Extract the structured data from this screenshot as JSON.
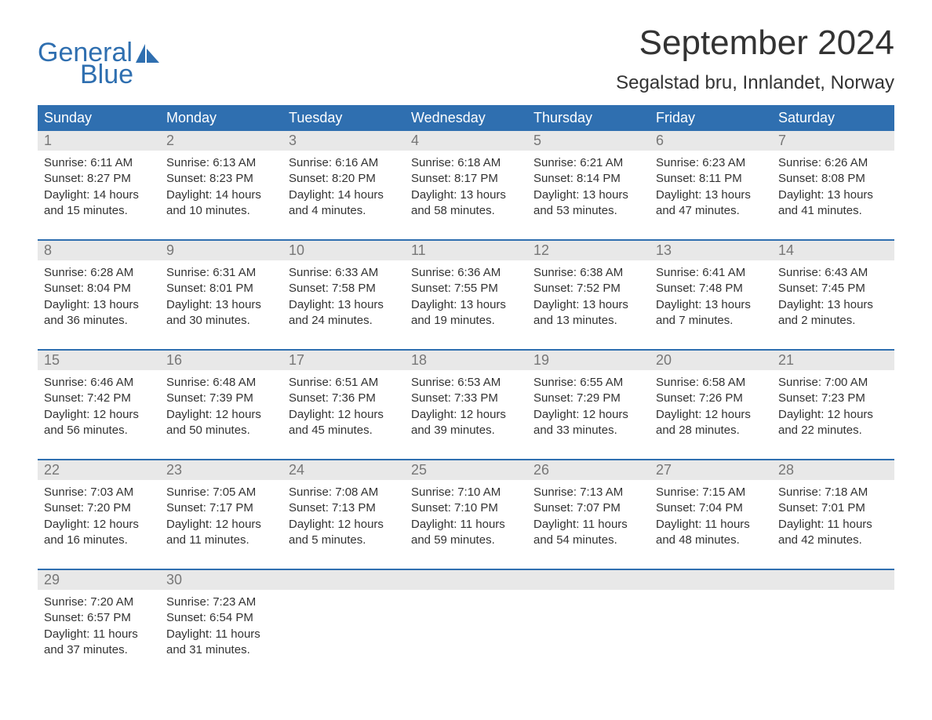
{
  "logo": {
    "word1": "General",
    "word2": "Blue",
    "text_color": "#2f6fb0",
    "sail_color": "#2f6fb0"
  },
  "title": "September 2024",
  "location": "Segalstad bru, Innlandet, Norway",
  "colors": {
    "header_bg": "#2f6fb0",
    "header_text": "#ffffff",
    "daynum_bg": "#e8e8e8",
    "daynum_text": "#777777",
    "body_text": "#333333",
    "page_bg": "#ffffff",
    "week_divider": "#2f6fb0"
  },
  "day_headers": [
    "Sunday",
    "Monday",
    "Tuesday",
    "Wednesday",
    "Thursday",
    "Friday",
    "Saturday"
  ],
  "weeks": [
    [
      {
        "n": "1",
        "sr": "Sunrise: 6:11 AM",
        "ss": "Sunset: 8:27 PM",
        "d1": "Daylight: 14 hours",
        "d2": "and 15 minutes."
      },
      {
        "n": "2",
        "sr": "Sunrise: 6:13 AM",
        "ss": "Sunset: 8:23 PM",
        "d1": "Daylight: 14 hours",
        "d2": "and 10 minutes."
      },
      {
        "n": "3",
        "sr": "Sunrise: 6:16 AM",
        "ss": "Sunset: 8:20 PM",
        "d1": "Daylight: 14 hours",
        "d2": "and 4 minutes."
      },
      {
        "n": "4",
        "sr": "Sunrise: 6:18 AM",
        "ss": "Sunset: 8:17 PM",
        "d1": "Daylight: 13 hours",
        "d2": "and 58 minutes."
      },
      {
        "n": "5",
        "sr": "Sunrise: 6:21 AM",
        "ss": "Sunset: 8:14 PM",
        "d1": "Daylight: 13 hours",
        "d2": "and 53 minutes."
      },
      {
        "n": "6",
        "sr": "Sunrise: 6:23 AM",
        "ss": "Sunset: 8:11 PM",
        "d1": "Daylight: 13 hours",
        "d2": "and 47 minutes."
      },
      {
        "n": "7",
        "sr": "Sunrise: 6:26 AM",
        "ss": "Sunset: 8:08 PM",
        "d1": "Daylight: 13 hours",
        "d2": "and 41 minutes."
      }
    ],
    [
      {
        "n": "8",
        "sr": "Sunrise: 6:28 AM",
        "ss": "Sunset: 8:04 PM",
        "d1": "Daylight: 13 hours",
        "d2": "and 36 minutes."
      },
      {
        "n": "9",
        "sr": "Sunrise: 6:31 AM",
        "ss": "Sunset: 8:01 PM",
        "d1": "Daylight: 13 hours",
        "d2": "and 30 minutes."
      },
      {
        "n": "10",
        "sr": "Sunrise: 6:33 AM",
        "ss": "Sunset: 7:58 PM",
        "d1": "Daylight: 13 hours",
        "d2": "and 24 minutes."
      },
      {
        "n": "11",
        "sr": "Sunrise: 6:36 AM",
        "ss": "Sunset: 7:55 PM",
        "d1": "Daylight: 13 hours",
        "d2": "and 19 minutes."
      },
      {
        "n": "12",
        "sr": "Sunrise: 6:38 AM",
        "ss": "Sunset: 7:52 PM",
        "d1": "Daylight: 13 hours",
        "d2": "and 13 minutes."
      },
      {
        "n": "13",
        "sr": "Sunrise: 6:41 AM",
        "ss": "Sunset: 7:48 PM",
        "d1": "Daylight: 13 hours",
        "d2": "and 7 minutes."
      },
      {
        "n": "14",
        "sr": "Sunrise: 6:43 AM",
        "ss": "Sunset: 7:45 PM",
        "d1": "Daylight: 13 hours",
        "d2": "and 2 minutes."
      }
    ],
    [
      {
        "n": "15",
        "sr": "Sunrise: 6:46 AM",
        "ss": "Sunset: 7:42 PM",
        "d1": "Daylight: 12 hours",
        "d2": "and 56 minutes."
      },
      {
        "n": "16",
        "sr": "Sunrise: 6:48 AM",
        "ss": "Sunset: 7:39 PM",
        "d1": "Daylight: 12 hours",
        "d2": "and 50 minutes."
      },
      {
        "n": "17",
        "sr": "Sunrise: 6:51 AM",
        "ss": "Sunset: 7:36 PM",
        "d1": "Daylight: 12 hours",
        "d2": "and 45 minutes."
      },
      {
        "n": "18",
        "sr": "Sunrise: 6:53 AM",
        "ss": "Sunset: 7:33 PM",
        "d1": "Daylight: 12 hours",
        "d2": "and 39 minutes."
      },
      {
        "n": "19",
        "sr": "Sunrise: 6:55 AM",
        "ss": "Sunset: 7:29 PM",
        "d1": "Daylight: 12 hours",
        "d2": "and 33 minutes."
      },
      {
        "n": "20",
        "sr": "Sunrise: 6:58 AM",
        "ss": "Sunset: 7:26 PM",
        "d1": "Daylight: 12 hours",
        "d2": "and 28 minutes."
      },
      {
        "n": "21",
        "sr": "Sunrise: 7:00 AM",
        "ss": "Sunset: 7:23 PM",
        "d1": "Daylight: 12 hours",
        "d2": "and 22 minutes."
      }
    ],
    [
      {
        "n": "22",
        "sr": "Sunrise: 7:03 AM",
        "ss": "Sunset: 7:20 PM",
        "d1": "Daylight: 12 hours",
        "d2": "and 16 minutes."
      },
      {
        "n": "23",
        "sr": "Sunrise: 7:05 AM",
        "ss": "Sunset: 7:17 PM",
        "d1": "Daylight: 12 hours",
        "d2": "and 11 minutes."
      },
      {
        "n": "24",
        "sr": "Sunrise: 7:08 AM",
        "ss": "Sunset: 7:13 PM",
        "d1": "Daylight: 12 hours",
        "d2": "and 5 minutes."
      },
      {
        "n": "25",
        "sr": "Sunrise: 7:10 AM",
        "ss": "Sunset: 7:10 PM",
        "d1": "Daylight: 11 hours",
        "d2": "and 59 minutes."
      },
      {
        "n": "26",
        "sr": "Sunrise: 7:13 AM",
        "ss": "Sunset: 7:07 PM",
        "d1": "Daylight: 11 hours",
        "d2": "and 54 minutes."
      },
      {
        "n": "27",
        "sr": "Sunrise: 7:15 AM",
        "ss": "Sunset: 7:04 PM",
        "d1": "Daylight: 11 hours",
        "d2": "and 48 minutes."
      },
      {
        "n": "28",
        "sr": "Sunrise: 7:18 AM",
        "ss": "Sunset: 7:01 PM",
        "d1": "Daylight: 11 hours",
        "d2": "and 42 minutes."
      }
    ],
    [
      {
        "n": "29",
        "sr": "Sunrise: 7:20 AM",
        "ss": "Sunset: 6:57 PM",
        "d1": "Daylight: 11 hours",
        "d2": "and 37 minutes."
      },
      {
        "n": "30",
        "sr": "Sunrise: 7:23 AM",
        "ss": "Sunset: 6:54 PM",
        "d1": "Daylight: 11 hours",
        "d2": "and 31 minutes."
      },
      null,
      null,
      null,
      null,
      null
    ]
  ]
}
